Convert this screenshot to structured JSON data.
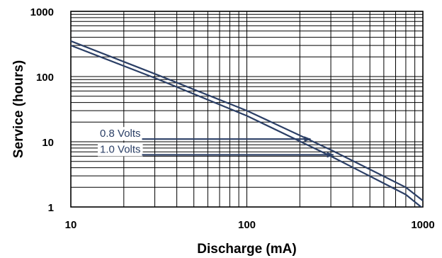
{
  "chart_data": {
    "type": "line",
    "title": "",
    "xlabel": "Discharge (mA)",
    "ylabel": "Service (hours)",
    "x_scale": "log",
    "y_scale": "log",
    "xlim": [
      10,
      1000
    ],
    "ylim": [
      1,
      1000
    ],
    "x_ticks": [
      10,
      100,
      1000
    ],
    "x_tick_labels": [
      "10",
      "100",
      "1000"
    ],
    "y_ticks": [
      1,
      10,
      100,
      1000
    ],
    "y_tick_labels": [
      "1",
      "10",
      "100",
      "1000"
    ],
    "grid": true,
    "legend": "none",
    "line_color": "#2b3f66",
    "series": [
      {
        "x": [
          10,
          30,
          100,
          300,
          800,
          1000
        ],
        "y": [
          350,
          110,
          30,
          7.5,
          2,
          1.25
        ]
      },
      {
        "x": [
          10,
          30,
          100,
          300,
          800,
          1000
        ],
        "y": [
          300,
          95,
          25,
          6,
          1.55,
          0.95
        ]
      }
    ],
    "annotations": [
      {
        "label": "0.8 Volts",
        "arrow_to": [
          230,
          11
        ]
      },
      {
        "label": "1.0 Volts",
        "arrow_to": [
          310,
          6.3
        ]
      }
    ]
  }
}
